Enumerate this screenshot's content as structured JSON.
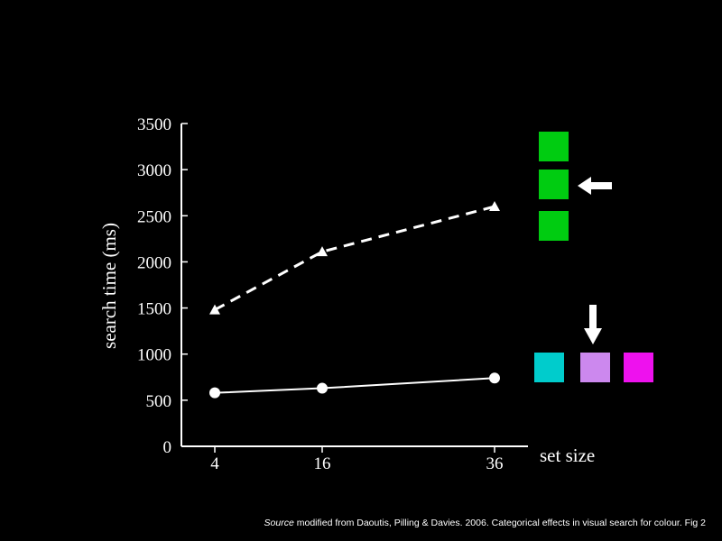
{
  "chart_data": {
    "type": "line",
    "ylabel": "search time (ms)",
    "xlabel": "set size",
    "x": [
      4,
      16,
      36
    ],
    "x_ticks": [
      4,
      16,
      36
    ],
    "ylim": [
      0,
      3500
    ],
    "y_ticks": [
      0,
      500,
      1000,
      1500,
      2000,
      2500,
      3000,
      3500
    ],
    "grid": false,
    "series": [
      {
        "name": "",
        "marker": "triangle",
        "line_style": "dashed",
        "values": [
          1480,
          2110,
          2600
        ]
      },
      {
        "name": "",
        "marker": "circle",
        "line_style": "solid",
        "values": [
          580,
          630,
          740
        ]
      }
    ]
  },
  "stimuli": {
    "green_column": {
      "colors": [
        "#00cc11",
        "#00cc11",
        "#00cc11"
      ],
      "arrow": "arrow-left-icon"
    },
    "color_row": {
      "colors": [
        "#00cccc",
        "#cc88ee",
        "#ee11ee"
      ],
      "arrow": "arrow-down-icon"
    }
  },
  "source": {
    "italic": "Source",
    "rest": " modified from Daoutis, Pilling & Davies. 2006. Categorical effects in visual search for colour. Fig 2"
  }
}
